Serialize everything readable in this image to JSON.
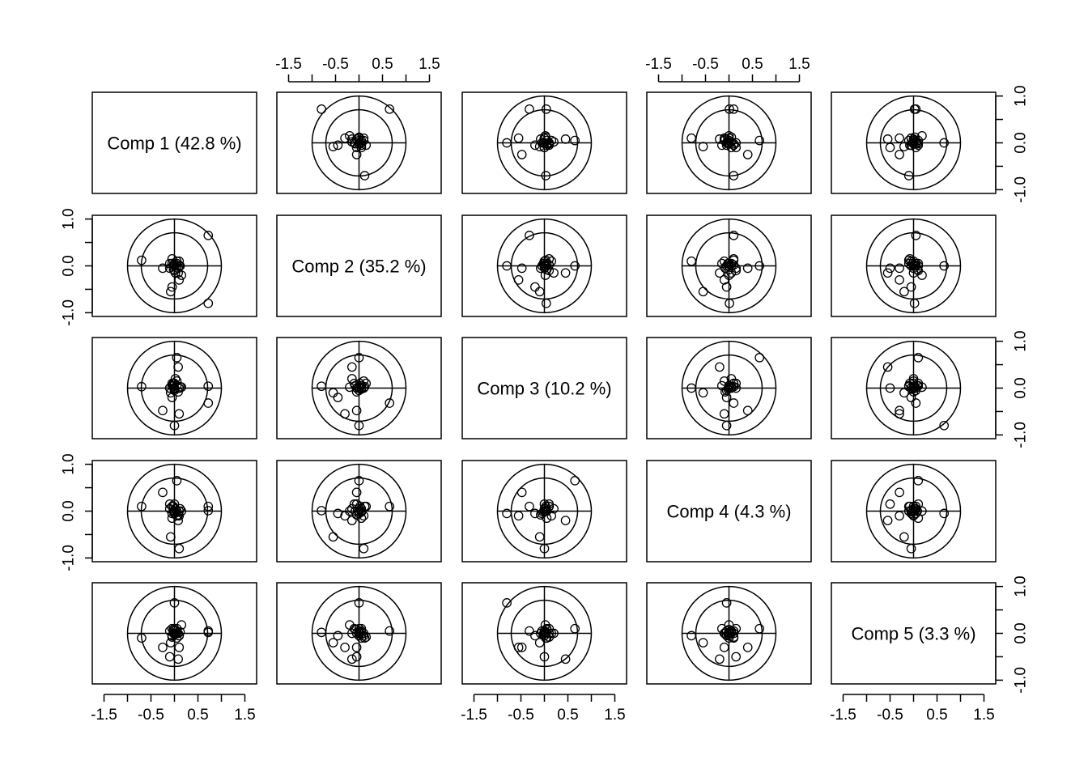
{
  "chart_data": {
    "type": "scatter",
    "layout": "scatterplot-matrix",
    "components": [
      {
        "label": "Comp 1 (42.8 %)"
      },
      {
        "label": "Comp 2 (35.2 %)"
      },
      {
        "label": "Comp 3 (10.2 %)"
      },
      {
        "label": "Comp 4 (4.3 %)"
      },
      {
        "label": "Comp 5 (3.3 %)"
      }
    ],
    "xlim": [
      -1.75,
      1.75
    ],
    "ylim": [
      -1.08,
      1.08
    ],
    "x_ticks": [
      -1.5,
      -1.0,
      -0.5,
      0.0,
      0.5,
      1.0,
      1.5
    ],
    "x_tick_labels": [
      "-1.5",
      "",
      "-0.5",
      "",
      "0.5",
      "",
      "1.5"
    ],
    "y_ticks": [
      -1.0,
      -0.5,
      0.0,
      0.5,
      1.0
    ],
    "y_tick_labels": [
      "-1.0",
      "",
      "0.0",
      "",
      "1.0"
    ],
    "circle_radii": [
      0.707,
      1.0
    ],
    "grid": false,
    "legend": "none",
    "scores": [
      [
        0.72,
        0.65,
        -0.32,
        0.1,
        0.05
      ],
      [
        0.72,
        -0.8,
        0.04,
        0.01,
        0.02
      ],
      [
        0.05,
        0.0,
        0.65,
        0.65,
        0.1
      ],
      [
        0.0,
        0.0,
        -0.8,
        -0.05,
        0.65
      ],
      [
        0.1,
        0.1,
        0.0,
        -0.8,
        -0.05
      ],
      [
        -0.05,
        -0.45,
        -0.2,
        -0.05,
        -0.05
      ],
      [
        -0.25,
        -0.05,
        -0.48,
        0.4,
        -0.3
      ],
      [
        -0.7,
        0.12,
        0.03,
        0.1,
        -0.1
      ],
      [
        0.1,
        -0.3,
        -0.55,
        -0.1,
        -0.3
      ],
      [
        -0.1,
        -0.05,
        0.0,
        0.15,
        -0.5
      ],
      [
        0.08,
        -0.15,
        0.45,
        -0.2,
        -0.55
      ],
      [
        -0.08,
        -0.55,
        -0.1,
        -0.55,
        -0.2
      ],
      [
        0.15,
        -0.2,
        0.02,
        0.0,
        0.18
      ],
      [
        0.05,
        0.05,
        0.05,
        0.0,
        -0.1
      ],
      [
        -0.02,
        0.02,
        0.1,
        0.1,
        0.0
      ],
      [
        0.0,
        0.0,
        -0.05,
        -0.05,
        0.05
      ],
      [
        -0.1,
        0.05,
        0.0,
        0.05,
        0.05
      ],
      [
        0.05,
        0.1,
        0.15,
        -0.1,
        0.0
      ],
      [
        0.1,
        0.0,
        0.0,
        0.0,
        -0.05
      ],
      [
        0.0,
        -0.1,
        0.1,
        0.15,
        0.1
      ],
      [
        -0.05,
        0.15,
        0.1,
        0.1,
        -0.08
      ],
      [
        0.08,
        -0.05,
        -0.08,
        -0.08,
        0.0
      ],
      [
        -0.02,
        -0.08,
        0.05,
        0.0,
        0.08
      ],
      [
        0.0,
        0.05,
        -0.02,
        -0.02,
        -0.02
      ],
      [
        0.12,
        0.0,
        0.03,
        0.05,
        0.03
      ],
      [
        0.02,
        -0.15,
        0.2,
        0.05,
        0.0
      ],
      [
        -0.05,
        0.05,
        0.05,
        -0.15,
        0.1
      ],
      [
        0.0,
        0.0,
        0.0,
        0.0,
        0.0
      ]
    ]
  }
}
